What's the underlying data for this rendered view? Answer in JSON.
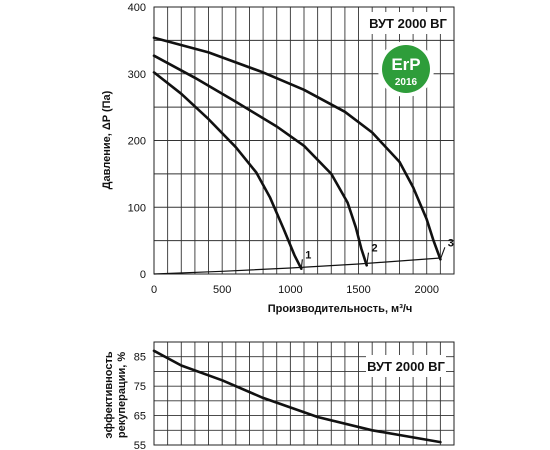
{
  "chart_data": [
    {
      "type": "line",
      "title": "ВУТ 2000 ВГ",
      "xlabel": "Производительность,  м³/ч",
      "ylabel": "Давление, ΔP (Па)",
      "xlim": [
        0,
        2200
      ],
      "ylim": [
        0,
        400
      ],
      "xticks": [
        0,
        500,
        1000,
        1500,
        2000
      ],
      "yticks": [
        0,
        100,
        200,
        300,
        400
      ],
      "grid": true,
      "badge": {
        "line1": "ErP",
        "line2": "2016",
        "color": "#2e9d3a"
      },
      "series": [
        {
          "name": "1",
          "x": [
            0,
            200,
            400,
            600,
            750,
            850,
            950,
            1030,
            1080
          ],
          "y": [
            302,
            270,
            232,
            190,
            152,
            115,
            68,
            28,
            8
          ]
        },
        {
          "name": "2",
          "x": [
            0,
            300,
            600,
            900,
            1100,
            1300,
            1420,
            1480,
            1520,
            1560
          ],
          "y": [
            327,
            294,
            258,
            221,
            192,
            150,
            107,
            70,
            38,
            13
          ]
        },
        {
          "name": "3",
          "x": [
            0,
            400,
            800,
            1100,
            1400,
            1600,
            1800,
            1900,
            2000,
            2050,
            2100
          ],
          "y": [
            354,
            332,
            302,
            276,
            243,
            212,
            168,
            130,
            82,
            50,
            22
          ]
        },
        {
          "name": "",
          "x": [
            0,
            500,
            1000,
            1500,
            2100
          ],
          "y": [
            0,
            4,
            9,
            15,
            24
          ]
        }
      ],
      "curve_labels": [
        {
          "text": "1",
          "x": 1110,
          "y": 25
        },
        {
          "text": "2",
          "x": 1595,
          "y": 35
        },
        {
          "text": "3",
          "x": 2155,
          "y": 43
        }
      ]
    },
    {
      "type": "line",
      "title": "ВУТ 2000 ВГ",
      "xlabel": "",
      "ylabel": "эффективность рекуперации, %",
      "xlim": [
        0,
        2200
      ],
      "ylim": [
        55,
        90
      ],
      "xticks": [
        0,
        500,
        1000,
        1500,
        2000
      ],
      "yticks": [
        55,
        65,
        75,
        85
      ],
      "grid": true,
      "series": [
        {
          "name": "",
          "x": [
            0,
            200,
            500,
            800,
            1200,
            1600,
            2100
          ],
          "y": [
            87,
            82,
            77,
            71,
            64.5,
            60,
            56
          ]
        }
      ]
    }
  ]
}
